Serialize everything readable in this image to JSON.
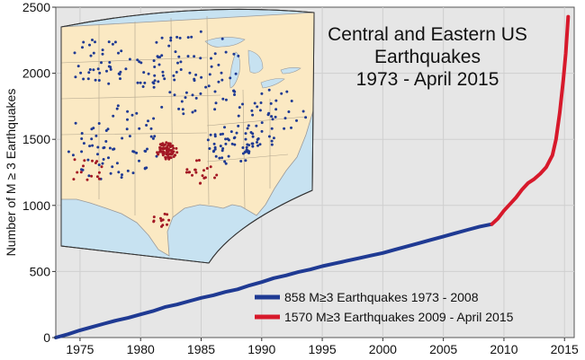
{
  "chart_data": {
    "type": "line",
    "title_lines": [
      "Central and Eastern US",
      "Earthquakes",
      "1973 - April 2015"
    ],
    "ylabel": "Number of M ≥ 3 Earthquakes",
    "xlabel": "",
    "xlim": [
      1973,
      2015.8
    ],
    "ylim": [
      0,
      2500
    ],
    "x_ticks": [
      1975,
      1980,
      1985,
      1990,
      1995,
      2000,
      2005,
      2010,
      2015
    ],
    "y_ticks": [
      0,
      500,
      1000,
      1500,
      2000,
      2500
    ],
    "grid": true,
    "legend_position": "bottom-right",
    "series": [
      {
        "name": "858  M≥3 Earthquakes 1973 - 2008",
        "color": "#1f3a93",
        "points": [
          [
            1973.0,
            0
          ],
          [
            1974.0,
            25
          ],
          [
            1975.0,
            55
          ],
          [
            1976.0,
            80
          ],
          [
            1977.0,
            105
          ],
          [
            1978.0,
            130
          ],
          [
            1979.0,
            150
          ],
          [
            1980.0,
            175
          ],
          [
            1981.0,
            200
          ],
          [
            1982.0,
            230
          ],
          [
            1983.0,
            250
          ],
          [
            1984.0,
            275
          ],
          [
            1985.0,
            300
          ],
          [
            1986.0,
            320
          ],
          [
            1987.0,
            345
          ],
          [
            1988.0,
            365
          ],
          [
            1989.0,
            395
          ],
          [
            1990.0,
            420
          ],
          [
            1991.0,
            450
          ],
          [
            1992.0,
            470
          ],
          [
            1993.0,
            495
          ],
          [
            1994.0,
            515
          ],
          [
            1995.0,
            540
          ],
          [
            1996.0,
            560
          ],
          [
            1997.0,
            580
          ],
          [
            1998.0,
            600
          ],
          [
            1999.0,
            620
          ],
          [
            2000.0,
            640
          ],
          [
            2001.0,
            665
          ],
          [
            2002.0,
            690
          ],
          [
            2003.0,
            715
          ],
          [
            2004.0,
            740
          ],
          [
            2005.0,
            765
          ],
          [
            2006.0,
            790
          ],
          [
            2007.0,
            815
          ],
          [
            2008.0,
            840
          ],
          [
            2009.0,
            858
          ]
        ]
      },
      {
        "name": "1570 M≥3 Earthquakes 2009 - April 2015",
        "color": "#d7192b",
        "points": [
          [
            2009.0,
            858
          ],
          [
            2009.5,
            900
          ],
          [
            2010.0,
            960
          ],
          [
            2010.5,
            1010
          ],
          [
            2011.0,
            1060
          ],
          [
            2011.5,
            1120
          ],
          [
            2012.0,
            1170
          ],
          [
            2012.5,
            1200
          ],
          [
            2013.0,
            1240
          ],
          [
            2013.5,
            1290
          ],
          [
            2014.0,
            1380
          ],
          [
            2014.3,
            1500
          ],
          [
            2014.6,
            1700
          ],
          [
            2014.9,
            1950
          ],
          [
            2015.1,
            2150
          ],
          [
            2015.3,
            2428
          ]
        ]
      }
    ]
  },
  "inset_map": {
    "background": "#fbe9c3",
    "water": "#c7e2f1",
    "boundary": "#a8a8a8",
    "dot_colors": {
      "1973-2008": "#1f3a93",
      "2009-2015": "#a31824"
    }
  }
}
